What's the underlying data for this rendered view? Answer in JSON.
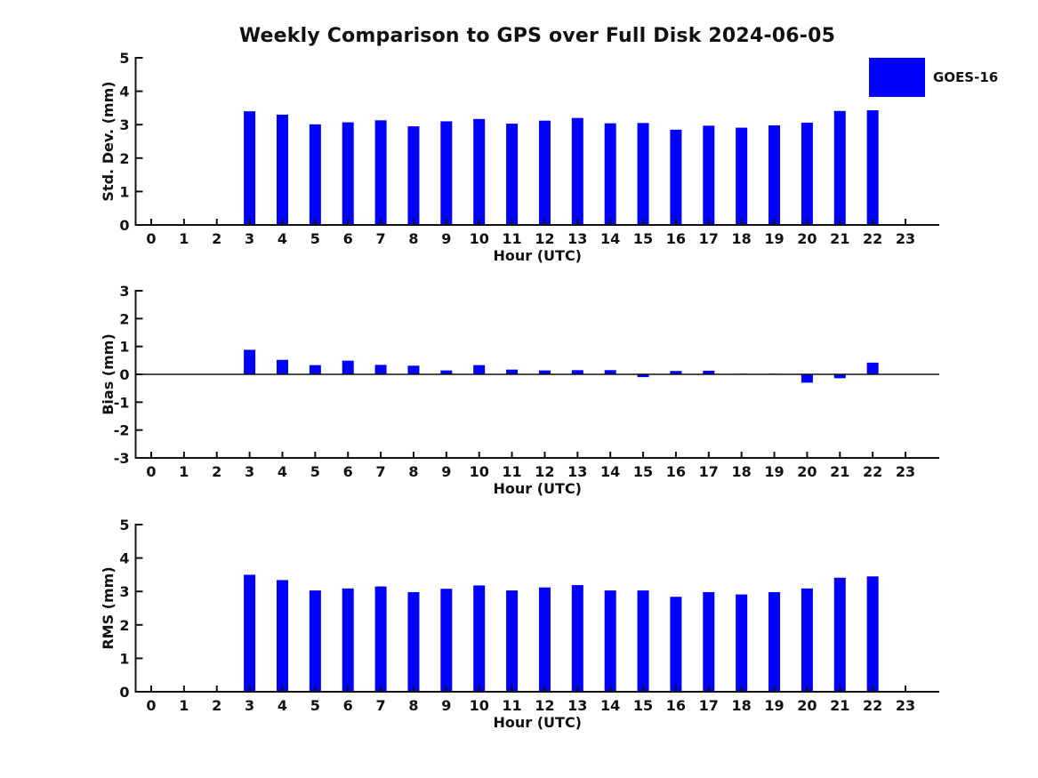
{
  "figure": {
    "title": "Weekly Comparison to GPS over Full Disk 2024-06-05",
    "legend": {
      "label": "GOES-16",
      "color": "#0000ff",
      "position": "top-right"
    },
    "background": "#ffffff"
  },
  "chart_data": [
    {
      "id": "stddev",
      "type": "bar",
      "title": "",
      "xlabel": "Hour (UTC)",
      "ylabel": "Std. Dev. (mm)",
      "ylim": [
        0,
        5
      ],
      "yticks": [
        0,
        1,
        2,
        3,
        4,
        5
      ],
      "grid": false,
      "categories": [
        "0",
        "1",
        "2",
        "3",
        "4",
        "5",
        "6",
        "7",
        "8",
        "9",
        "10",
        "11",
        "12",
        "13",
        "14",
        "15",
        "16",
        "17",
        "18",
        "19",
        "20",
        "21",
        "22",
        "23"
      ],
      "series": [
        {
          "name": "GOES-16",
          "values": [
            null,
            null,
            null,
            3.4,
            3.3,
            3.01,
            3.07,
            3.13,
            2.95,
            3.1,
            3.17,
            3.03,
            3.12,
            3.2,
            3.04,
            3.05,
            2.85,
            2.97,
            2.91,
            2.98,
            3.06,
            3.41,
            3.43,
            null
          ]
        }
      ]
    },
    {
      "id": "bias",
      "type": "bar",
      "title": "",
      "xlabel": "Hour (UTC)",
      "ylabel": "Bias (mm)",
      "ylim": [
        -3,
        3
      ],
      "yticks": [
        -3,
        -2,
        -1,
        0,
        1,
        2,
        3
      ],
      "zero_line": true,
      "grid": false,
      "categories": [
        "0",
        "1",
        "2",
        "3",
        "4",
        "5",
        "6",
        "7",
        "8",
        "9",
        "10",
        "11",
        "12",
        "13",
        "14",
        "15",
        "16",
        "17",
        "18",
        "19",
        "20",
        "21",
        "22",
        "23"
      ],
      "series": [
        {
          "name": "GOES-16",
          "values": [
            null,
            null,
            null,
            0.88,
            0.52,
            0.33,
            0.49,
            0.34,
            0.31,
            0.14,
            0.33,
            0.17,
            0.14,
            0.15,
            0.15,
            -0.1,
            0.12,
            0.13,
            0.02,
            0.02,
            -0.3,
            -0.14,
            0.42,
            null
          ]
        }
      ]
    },
    {
      "id": "rms",
      "type": "bar",
      "title": "",
      "xlabel": "Hour (UTC)",
      "ylabel": "RMS (mm)",
      "ylim": [
        0,
        5
      ],
      "yticks": [
        0,
        1,
        2,
        3,
        4,
        5
      ],
      "grid": false,
      "categories": [
        "0",
        "1",
        "2",
        "3",
        "4",
        "5",
        "6",
        "7",
        "8",
        "9",
        "10",
        "11",
        "12",
        "13",
        "14",
        "15",
        "16",
        "17",
        "18",
        "19",
        "20",
        "21",
        "22",
        "23"
      ],
      "series": [
        {
          "name": "GOES-16",
          "values": [
            null,
            null,
            null,
            3.5,
            3.34,
            3.03,
            3.09,
            3.15,
            2.98,
            3.08,
            3.18,
            3.03,
            3.12,
            3.19,
            3.03,
            3.03,
            2.84,
            2.98,
            2.91,
            2.98,
            3.09,
            3.41,
            3.45,
            null
          ]
        }
      ]
    }
  ]
}
